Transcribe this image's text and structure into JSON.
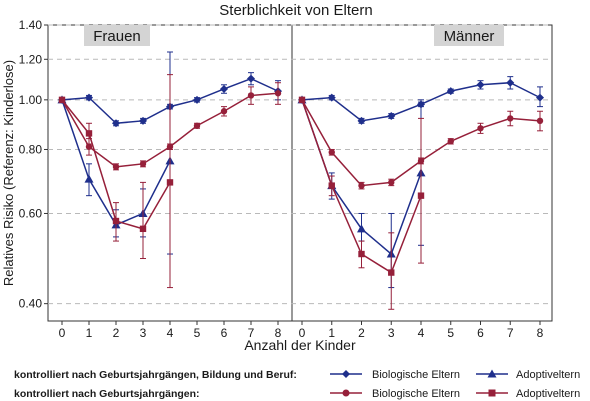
{
  "chart_data": {
    "type": "line",
    "title": "Sterblichkeit von Eltern",
    "xlabel": "Anzahl der Kinder",
    "ylabel": "Relatives Risiko (Referenz: Kinderlose)",
    "x": [
      0,
      1,
      2,
      3,
      4,
      5,
      6,
      7,
      8
    ],
    "x_ticks": [
      "0",
      "1",
      "2",
      "3",
      "4",
      "5",
      "6",
      "7",
      "8"
    ],
    "y_scale": "log",
    "ylim": [
      0.37,
      1.4
    ],
    "y_ticks": [
      0.4,
      0.6,
      0.8,
      1.0,
      1.2,
      1.4
    ],
    "y_tick_labels": [
      "0.40",
      "0.60",
      "0.80",
      "1.00",
      "1.20",
      "1.40"
    ],
    "grid": "horizontal dashed",
    "colors": {
      "blue": "#1f2f8c",
      "red": "#96203a"
    },
    "panels": [
      {
        "label": "Frauen",
        "series": [
          {
            "name": "Biologische Eltern",
            "group": "controlled_full",
            "color": "#1f2f8c",
            "marker": "diamond",
            "values": [
              1.0,
              1.01,
              0.9,
              0.91,
              0.97,
              1.0,
              1.05,
              1.1,
              1.04
            ],
            "err_low": [
              1.0,
              1.0,
              0.89,
              0.9,
              0.96,
              0.99,
              1.03,
              1.07,
              1.0
            ],
            "err_high": [
              1.0,
              1.02,
              0.91,
              0.92,
              0.98,
              1.01,
              1.07,
              1.13,
              1.09
            ]
          },
          {
            "name": "Adoptiveltern",
            "group": "controlled_full",
            "color": "#1f2f8c",
            "marker": "triangle",
            "values": [
              1.0,
              0.7,
              0.57,
              0.6,
              0.76
            ],
            "err_low": [
              1.0,
              0.65,
              0.54,
              0.54,
              0.5
            ],
            "err_high": [
              1.0,
              0.75,
              0.61,
              0.67,
              1.24
            ]
          },
          {
            "name": "Biologische Eltern",
            "group": "controlled_birth_year",
            "color": "#96203a",
            "marker": "circle",
            "values": [
              1.0,
              0.81,
              0.74,
              0.75,
              0.81,
              0.89,
              0.95,
              1.02,
              1.03
            ],
            "err_low": [
              1.0,
              0.78,
              0.73,
              0.74,
              0.8,
              0.88,
              0.93,
              0.98,
              0.98
            ],
            "err_high": [
              1.0,
              0.84,
              0.75,
              0.76,
              0.82,
              0.9,
              0.97,
              1.06,
              1.08
            ]
          },
          {
            "name": "Adoptiveltern",
            "group": "controlled_birth_year",
            "color": "#96203a",
            "marker": "square",
            "values": [
              1.0,
              0.86,
              0.58,
              0.56,
              0.69
            ],
            "err_low": [
              1.0,
              0.82,
              0.53,
              0.49,
              0.43
            ],
            "err_high": [
              1.0,
              0.9,
              0.63,
              0.69,
              1.12
            ]
          }
        ]
      },
      {
        "label": "Männer",
        "series": [
          {
            "name": "Biologische Eltern",
            "group": "controlled_full",
            "color": "#1f2f8c",
            "marker": "diamond",
            "values": [
              1.0,
              1.01,
              0.91,
              0.93,
              0.98,
              1.04,
              1.07,
              1.08,
              1.01
            ],
            "err_low": [
              1.0,
              1.0,
              0.9,
              0.92,
              0.97,
              1.03,
              1.05,
              1.05,
              0.97
            ],
            "err_high": [
              1.0,
              1.02,
              0.92,
              0.94,
              0.99,
              1.05,
              1.09,
              1.11,
              1.06
            ]
          },
          {
            "name": "Adoptiveltern",
            "group": "controlled_full",
            "color": "#1f2f8c",
            "marker": "triangle",
            "values": [
              1.0,
              0.68,
              0.56,
              0.5,
              0.72
            ],
            "err_low": [
              1.0,
              0.64,
              0.53,
              0.43,
              0.52
            ],
            "err_high": [
              1.0,
              0.72,
              0.6,
              0.6,
              1.0
            ]
          },
          {
            "name": "Biologische Eltern",
            "group": "controlled_birth_year",
            "color": "#96203a",
            "marker": "circle",
            "values": [
              1.0,
              0.79,
              0.68,
              0.69,
              0.76,
              0.83,
              0.88,
              0.92,
              0.91
            ],
            "err_low": [
              1.0,
              0.78,
              0.67,
              0.68,
              0.75,
              0.82,
              0.86,
              0.89,
              0.87
            ],
            "err_high": [
              1.0,
              0.8,
              0.69,
              0.7,
              0.77,
              0.84,
              0.9,
              0.95,
              0.95
            ]
          },
          {
            "name": "Adoptiveltern",
            "group": "controlled_birth_year",
            "color": "#96203a",
            "marker": "square",
            "values": [
              1.0,
              0.68,
              0.5,
              0.46,
              0.65
            ],
            "err_low": [
              1.0,
              0.65,
              0.47,
              0.39,
              0.48
            ],
            "err_high": [
              1.0,
              0.71,
              0.53,
              0.55,
              0.92
            ]
          }
        ]
      }
    ],
    "legend": {
      "rows": [
        {
          "label": "kontrolliert nach Geburtsjahrgängen, Bildung und Beruf:",
          "group": "controlled_full",
          "entries": [
            {
              "text": "Biologische Eltern",
              "marker": "diamond",
              "color": "#1f2f8c"
            },
            {
              "text": "Adoptiveltern",
              "marker": "triangle",
              "color": "#1f2f8c"
            }
          ]
        },
        {
          "label": "kontrolliert nach Geburtsjahrgängen:",
          "group": "controlled_birth_year",
          "entries": [
            {
              "text": "Biologische Eltern",
              "marker": "circle",
              "color": "#96203a"
            },
            {
              "text": "Adoptiveltern",
              "marker": "square",
              "color": "#96203a"
            }
          ]
        }
      ]
    }
  }
}
